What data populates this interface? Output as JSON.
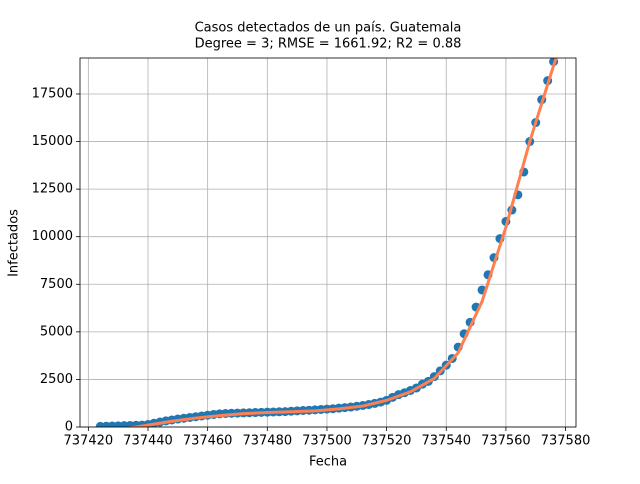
{
  "chart_data": {
    "type": "scatter",
    "title": "Casos detectados de un país. Guatemala",
    "subtitle": "Degree = 3; RMSE = 1661.92; R2 = 0.88",
    "x_label": "Fecha",
    "y_label": "Infectados",
    "xlim": [
      737417.2,
      737583.5
    ],
    "ylim": [
      0,
      19390
    ],
    "xticks": [
      737420,
      737440,
      737460,
      737480,
      737500,
      737520,
      737540,
      737560,
      737580
    ],
    "yticks": [
      0,
      2500,
      5000,
      7500,
      10000,
      12500,
      15000,
      17500
    ],
    "grid": true,
    "series": [
      {
        "mode": "markers",
        "color": "#1f77b4",
        "x": [
          737424,
          737426,
          737428,
          737430,
          737432,
          737434,
          737436,
          737438,
          737440,
          737442,
          737444,
          737446,
          737448,
          737450,
          737452,
          737454,
          737456,
          737458,
          737460,
          737462,
          737464,
          737466,
          737468,
          737470,
          737472,
          737474,
          737476,
          737478,
          737480,
          737482,
          737484,
          737486,
          737488,
          737490,
          737492,
          737494,
          737496,
          737498,
          737500,
          737502,
          737504,
          737506,
          737508,
          737510,
          737512,
          737514,
          737516,
          737518,
          737520,
          737522,
          737524,
          737526,
          737528,
          737530,
          737532,
          737534,
          737536,
          737538,
          737540,
          737542,
          737544,
          737546,
          737548,
          737550,
          737552,
          737554,
          737556,
          737558,
          737560,
          737562,
          737564,
          737566,
          737568,
          737570,
          737572,
          737574,
          737576
        ],
        "values": [
          30,
          40,
          50,
          60,
          70,
          80,
          90,
          100,
          130,
          200,
          260,
          320,
          370,
          420,
          460,
          500,
          540,
          580,
          620,
          660,
          690,
          710,
          720,
          730,
          740,
          750,
          760,
          770,
          780,
          790,
          800,
          810,
          830,
          850,
          870,
          880,
          900,
          920,
          940,
          960,
          990,
          1020,
          1050,
          1090,
          1130,
          1180,
          1240,
          1310,
          1400,
          1560,
          1700,
          1800,
          1920,
          2050,
          2250,
          2400,
          2650,
          2950,
          3250,
          3600,
          4200,
          4900,
          5500,
          6300,
          7200,
          8000,
          8900,
          9900,
          10800,
          11400,
          12200,
          13400,
          15000,
          16000,
          17200,
          18200,
          19200
        ]
      },
      {
        "mode": "line",
        "color": "#ff7f50",
        "x": [
          737424,
          737432,
          737440,
          737448,
          737456,
          737464,
          737472,
          737480,
          737488,
          737496,
          737504,
          737512,
          737520,
          737528,
          737536,
          737544,
          737552,
          737560,
          737568,
          737576,
          737578
        ],
        "values": [
          -300,
          -100,
          100,
          300,
          470,
          600,
          700,
          760,
          800,
          850,
          950,
          1100,
          1400,
          1850,
          2550,
          3900,
          6600,
          10500,
          15000,
          19000,
          19900
        ]
      }
    ]
  }
}
